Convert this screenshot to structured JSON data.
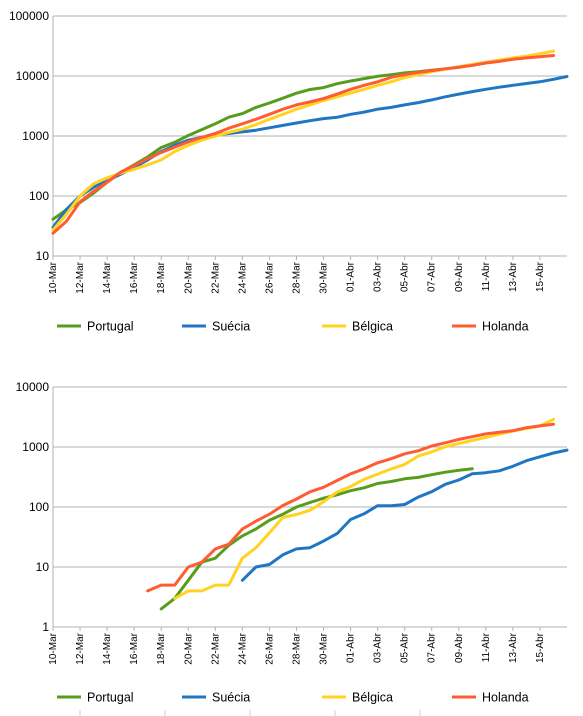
{
  "chart_data": [
    {
      "type": "line",
      "title": "",
      "xlabel": "",
      "ylabel": "",
      "y_scale": "log",
      "ylim": [
        10,
        100000
      ],
      "yticks": [
        "10",
        "100",
        "1000",
        "10000",
        "100000"
      ],
      "x_labels": [
        "10-Mar",
        "12-Mar",
        "14-Mar",
        "16-Mar",
        "18-Mar",
        "20-Mar",
        "22-Mar",
        "24-Mar",
        "26-Mar",
        "28-Mar",
        "30-Mar",
        "01-Abr",
        "03-Abr",
        "05-Abr",
        "07-Abr",
        "09-Abr",
        "11-Abr",
        "13-Abr",
        "15-Abr"
      ],
      "grid": true,
      "legend": "bottom",
      "series": [
        {
          "name": "Portugal",
          "color": "#579d1c",
          "x": [
            0,
            1,
            2,
            3,
            4,
            5,
            6,
            7,
            8,
            9,
            10,
            11,
            12,
            13,
            14,
            15,
            16,
            17,
            18,
            19,
            20,
            21,
            22,
            23,
            24,
            25,
            26,
            27,
            28,
            29,
            30,
            31
          ],
          "values": [
            41,
            59,
            78,
            112,
            169,
            245,
            331,
            448,
            642,
            785,
            1020,
            1280,
            1600,
            2060,
            2362,
            2995,
            3544,
            4268,
            5170,
            5962,
            6408,
            7443,
            8251,
            9034,
            9886,
            10524,
            11278,
            11730,
            12442,
            13141,
            13956,
            15472
          ]
        },
        {
          "name": "Suécia",
          "color": "#1f77c4",
          "x": [
            0,
            1,
            2,
            3,
            4,
            5,
            6,
            7,
            8,
            9,
            10,
            11,
            12,
            13,
            14,
            15,
            16,
            17,
            18,
            19,
            20,
            21,
            22,
            23,
            24,
            25,
            26,
            27,
            28,
            29,
            30,
            31,
            32,
            33,
            34,
            35,
            36,
            37,
            38
          ],
          "values": [
            30,
            60,
            100,
            140,
            180,
            230,
            300,
            400,
            550,
            700,
            850,
            950,
            1050,
            1100,
            1170,
            1250,
            1370,
            1500,
            1650,
            1800,
            1950,
            2050,
            2300,
            2500,
            2800,
            3000,
            3300,
            3600,
            4000,
            4500,
            5000,
            5500,
            6000,
            6500,
            7000,
            7500,
            8000,
            8800,
            9800
          ]
        },
        {
          "name": "Bélgica",
          "color": "#ffd320",
          "x": [
            0,
            1,
            2,
            3,
            4,
            5,
            6,
            7,
            8,
            9,
            10,
            11,
            12,
            13,
            14,
            15,
            16,
            17,
            18,
            19,
            20,
            21,
            22,
            23,
            24,
            25,
            26,
            27,
            28,
            29,
            30,
            31,
            32,
            33,
            34,
            35,
            36,
            37
          ],
          "values": [
            27,
            50,
            100,
            160,
            200,
            240,
            280,
            330,
            400,
            550,
            700,
            850,
            1000,
            1150,
            1300,
            1550,
            1900,
            2300,
            2800,
            3300,
            3900,
            4500,
            5200,
            6000,
            7000,
            8000,
            9400,
            10600,
            11800,
            13000,
            14300,
            15600,
            17000,
            18500,
            20000,
            21500,
            23500,
            26000
          ]
        },
        {
          "name": "Holanda",
          "color": "#ff5c33",
          "x": [
            0,
            1,
            2,
            3,
            4,
            5,
            6,
            7,
            8,
            9,
            10,
            11,
            12,
            13,
            14,
            15,
            16,
            17,
            18,
            19,
            20,
            21,
            22,
            23,
            24,
            25,
            26,
            27,
            28,
            29,
            30,
            31,
            32,
            33,
            34,
            35,
            36,
            37
          ],
          "values": [
            24,
            38,
            80,
            120,
            170,
            250,
            320,
            420,
            530,
            650,
            800,
            950,
            1100,
            1350,
            1600,
            1900,
            2300,
            2800,
            3300,
            3700,
            4200,
            5000,
            6000,
            7000,
            8000,
            9500,
            10500,
            11500,
            12300,
            13200,
            14000,
            15000,
            16500,
            17500,
            19000,
            20000,
            21000,
            22000
          ]
        }
      ]
    },
    {
      "type": "line",
      "title": "",
      "xlabel": "",
      "ylabel": "",
      "y_scale": "log",
      "ylim": [
        1,
        10000
      ],
      "yticks": [
        "1",
        "10",
        "100",
        "1000",
        "10000"
      ],
      "x_labels": [
        "10-Mar",
        "12-Mar",
        "14-Mar",
        "16-Mar",
        "18-Mar",
        "20-Mar",
        "22-Mar",
        "24-Mar",
        "26-Mar",
        "28-Mar",
        "30-Mar",
        "01-Abr",
        "03-Abr",
        "05-Abr",
        "07-Abr",
        "09-Abr",
        "11-Abr",
        "13-Abr",
        "15-Abr"
      ],
      "grid": true,
      "legend": "bottom",
      "series": [
        {
          "name": "Portugal",
          "color": "#579d1c",
          "x": [
            8,
            9,
            10,
            11,
            12,
            13,
            14,
            15,
            16,
            17,
            18,
            19,
            20,
            21,
            22,
            23,
            24,
            25,
            26,
            27,
            28,
            29,
            30,
            31
          ],
          "values": [
            2,
            3,
            6,
            12,
            14,
            23,
            33,
            43,
            60,
            76,
            100,
            119,
            140,
            160,
            187,
            209,
            246,
            266,
            295,
            311,
            345,
            380,
            409,
            435
          ]
        },
        {
          "name": "Suécia",
          "color": "#1f77c4",
          "x": [
            14,
            15,
            16,
            17,
            18,
            19,
            20,
            21,
            22,
            23,
            24,
            25,
            26,
            27,
            28,
            29,
            30,
            31,
            32,
            33,
            34,
            35,
            36,
            37,
            38
          ],
          "values": [
            6,
            10,
            11,
            16,
            20,
            21,
            27,
            36,
            62,
            77,
            105,
            105,
            110,
            146,
            180,
            239,
            282,
            358,
            373,
            401,
            477,
            591,
            687,
            793,
            887
          ]
        },
        {
          "name": "Bélgica",
          "color": "#ffd320",
          "x": [
            9,
            10,
            11,
            12,
            13,
            14,
            15,
            16,
            17,
            18,
            19,
            20,
            21,
            22,
            23,
            24,
            25,
            26,
            27,
            28,
            29,
            30,
            31,
            32,
            33,
            34,
            35,
            36,
            37
          ],
          "values": [
            3,
            4,
            4,
            5,
            5,
            14,
            21,
            37,
            67,
            75,
            88,
            122,
            178,
            220,
            289,
            353,
            431,
            513,
            705,
            828,
            1011,
            1143,
            1283,
            1447,
            1632,
            1850,
            2035,
            2240,
            2900
          ]
        },
        {
          "name": "Holanda",
          "color": "#ff5c33",
          "x": [
            7,
            8,
            9,
            10,
            11,
            12,
            13,
            14,
            15,
            16,
            17,
            18,
            19,
            20,
            21,
            22,
            23,
            24,
            25,
            26,
            27,
            28,
            29,
            30,
            31,
            32,
            33,
            34,
            35,
            36,
            37
          ],
          "values": [
            4,
            5,
            5,
            10,
            12,
            20,
            24,
            43,
            58,
            76,
            106,
            136,
            179,
            213,
            276,
            356,
            434,
            546,
            639,
            771,
            864,
            1039,
            1173,
            1339,
            1487,
            1651,
            1766,
            1867,
            2101,
            2248,
            2400
          ]
        }
      ]
    }
  ]
}
